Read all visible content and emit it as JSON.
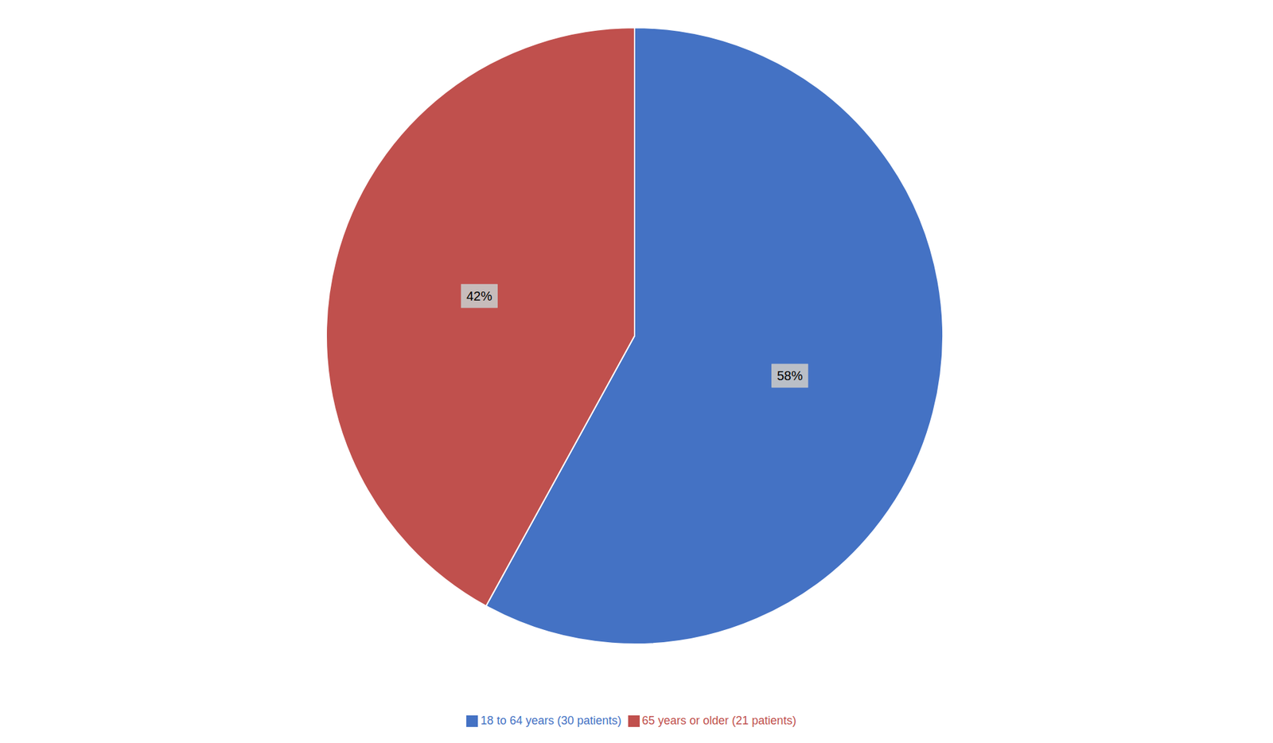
{
  "chart_data": {
    "type": "pie",
    "categories": [
      "18 to 64 years (30 patients)",
      "65 years or older (21 patients)"
    ],
    "values": [
      58,
      42
    ],
    "value_labels": [
      "58%",
      "42%"
    ],
    "colors": [
      "#4472C4",
      "#C0504D"
    ],
    "data_labels": true,
    "legend": "bottom"
  }
}
